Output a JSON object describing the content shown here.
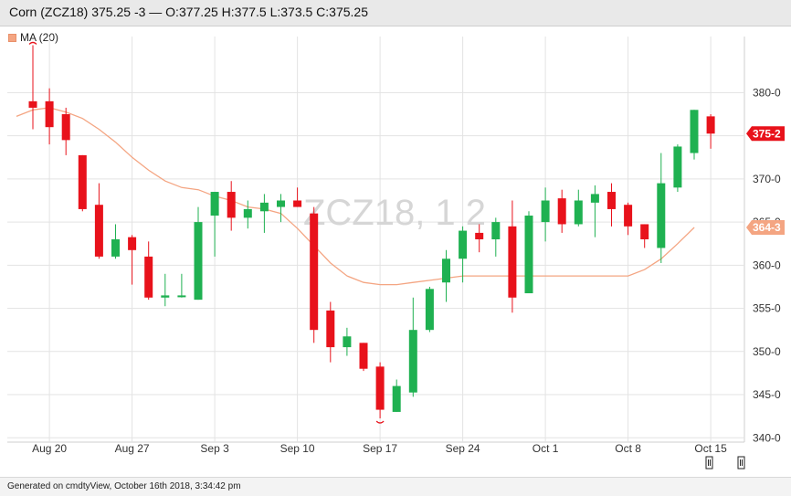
{
  "header": {
    "title": "Corn (ZCZ18) 375.25 -3 — O:377.25 H:377.5 L:373.5 C:375.25"
  },
  "legend": {
    "ma_label": "MA (20)",
    "ma_color": "#f4a582"
  },
  "footer": {
    "generated": "Generated on cmdtyView, October 16th 2018, 3:34:42 pm"
  },
  "colors": {
    "up": "#1fb151",
    "down": "#e8121b",
    "grid": "#e3e3e3",
    "watermark": "#d6d6d6"
  },
  "chart_data": {
    "type": "candlestick",
    "symbol_watermark": "ZCZ18, 1 2",
    "x_ticks": [
      {
        "label": "Aug 20",
        "index": 1
      },
      {
        "label": "Aug 27",
        "index": 6
      },
      {
        "label": "Sep 3",
        "index": 11
      },
      {
        "label": "Sep 10",
        "index": 16
      },
      {
        "label": "Sep 17",
        "index": 21
      },
      {
        "label": "Sep 24",
        "index": 26
      },
      {
        "label": "Oct 1",
        "index": 31
      },
      {
        "label": "Oct 8",
        "index": 36
      },
      {
        "label": "Oct 15",
        "index": 41
      }
    ],
    "y_ticks": [
      "340-0",
      "345-0",
      "350-0",
      "355-0",
      "360-0",
      "365-0",
      "370-0",
      "375-0",
      "380-0"
    ],
    "ylim": [
      339.5,
      386.5
    ],
    "price_labels": [
      {
        "text": "375-2",
        "value": 375.25,
        "color": "#e8121b"
      },
      {
        "text": "364-3",
        "value": 364.375,
        "color": "#f4a582"
      }
    ],
    "candles": [
      {
        "date": "Aug 17",
        "o": 379.0,
        "h": 385.5,
        "l": 375.75,
        "c": 378.25
      },
      {
        "date": "Aug 20",
        "o": 379.0,
        "h": 380.5,
        "l": 374.0,
        "c": 376.0
      },
      {
        "date": "Aug 21",
        "o": 377.5,
        "h": 378.25,
        "l": 372.75,
        "c": 374.5
      },
      {
        "date": "Aug 22",
        "o": 372.75,
        "h": 372.75,
        "l": 366.25,
        "c": 366.5
      },
      {
        "date": "Aug 23",
        "o": 367.0,
        "h": 369.5,
        "l": 360.75,
        "c": 361.0
      },
      {
        "date": "Aug 24",
        "o": 361.0,
        "h": 364.75,
        "l": 360.75,
        "c": 363.0
      },
      {
        "date": "Aug 27",
        "o": 363.25,
        "h": 363.5,
        "l": 357.75,
        "c": 361.75
      },
      {
        "date": "Aug 28",
        "o": 361.0,
        "h": 362.75,
        "l": 356.0,
        "c": 356.25
      },
      {
        "date": "Aug 29",
        "o": 356.25,
        "h": 359.0,
        "l": 355.25,
        "c": 356.5
      },
      {
        "date": "Aug 30",
        "o": 356.5,
        "h": 359.0,
        "l": 356.25,
        "c": 356.5
      },
      {
        "date": "Aug 31",
        "o": 356.0,
        "h": 366.75,
        "l": 356.0,
        "c": 365.0
      },
      {
        "date": "Sep 4",
        "o": 365.75,
        "h": 368.5,
        "l": 361.0,
        "c": 368.5
      },
      {
        "date": "Sep 5",
        "o": 368.5,
        "h": 369.75,
        "l": 364.0,
        "c": 365.5
      },
      {
        "date": "Sep 6",
        "o": 365.5,
        "h": 367.5,
        "l": 364.25,
        "c": 366.5
      },
      {
        "date": "Sep 7",
        "o": 366.25,
        "h": 368.25,
        "l": 363.75,
        "c": 367.25
      },
      {
        "date": "Sep 10",
        "o": 366.75,
        "h": 368.25,
        "l": 365.0,
        "c": 367.5
      },
      {
        "date": "Sep 11",
        "o": 367.5,
        "h": 369.0,
        "l": 366.75,
        "c": 366.75
      },
      {
        "date": "Sep 12",
        "o": 366.0,
        "h": 366.75,
        "l": 351.0,
        "c": 352.5
      },
      {
        "date": "Sep 13",
        "o": 354.75,
        "h": 355.75,
        "l": 348.75,
        "c": 350.5
      },
      {
        "date": "Sep 14",
        "o": 350.5,
        "h": 352.75,
        "l": 349.5,
        "c": 351.75
      },
      {
        "date": "Sep 17",
        "o": 351.0,
        "h": 351.0,
        "l": 347.75,
        "c": 348.0
      },
      {
        "date": "Sep 18",
        "o": 348.25,
        "h": 348.75,
        "l": 342.25,
        "c": 343.25
      },
      {
        "date": "Sep 19",
        "o": 343.0,
        "h": 346.75,
        "l": 343.0,
        "c": 346.0
      },
      {
        "date": "Sep 20",
        "o": 345.25,
        "h": 356.25,
        "l": 344.75,
        "c": 352.5
      },
      {
        "date": "Sep 21",
        "o": 352.5,
        "h": 357.5,
        "l": 352.25,
        "c": 357.25
      },
      {
        "date": "Sep 24",
        "o": 358.0,
        "h": 361.75,
        "l": 355.75,
        "c": 360.75
      },
      {
        "date": "Sep 25",
        "o": 360.75,
        "h": 364.5,
        "l": 358.0,
        "c": 364.0
      },
      {
        "date": "Sep 26",
        "o": 363.75,
        "h": 364.75,
        "l": 361.5,
        "c": 363.0
      },
      {
        "date": "Sep 27",
        "o": 363.0,
        "h": 365.5,
        "l": 361.0,
        "c": 365.0
      },
      {
        "date": "Sep 28",
        "o": 364.5,
        "h": 367.5,
        "l": 354.5,
        "c": 356.25
      },
      {
        "date": "Oct 1",
        "o": 356.75,
        "h": 366.25,
        "l": 356.75,
        "c": 365.75
      },
      {
        "date": "Oct 2",
        "o": 365.0,
        "h": 369.0,
        "l": 362.75,
        "c": 367.5
      },
      {
        "date": "Oct 3",
        "o": 367.75,
        "h": 368.75,
        "l": 363.75,
        "c": 364.75
      },
      {
        "date": "Oct 4",
        "o": 364.75,
        "h": 368.75,
        "l": 364.5,
        "c": 367.5
      },
      {
        "date": "Oct 5",
        "o": 367.25,
        "h": 369.25,
        "l": 363.25,
        "c": 368.25
      },
      {
        "date": "Oct 8",
        "o": 368.5,
        "h": 369.5,
        "l": 364.5,
        "c": 366.5
      },
      {
        "date": "Oct 9",
        "o": 367.0,
        "h": 367.25,
        "l": 363.5,
        "c": 364.5
      },
      {
        "date": "Oct 10",
        "o": 364.75,
        "h": 364.75,
        "l": 362.0,
        "c": 363.0
      },
      {
        "date": "Oct 11",
        "o": 362.0,
        "h": 373.0,
        "l": 360.25,
        "c": 369.5
      },
      {
        "date": "Oct 12",
        "o": 369.0,
        "h": 374.0,
        "l": 368.5,
        "c": 373.75
      },
      {
        "date": "Oct 15",
        "o": 373.0,
        "h": 378.0,
        "l": 372.25,
        "c": 378.0
      },
      {
        "date": "Oct 16",
        "o": 377.25,
        "h": 377.5,
        "l": 373.5,
        "c": 375.25
      }
    ],
    "ma": {
      "name": "MA (20)",
      "values": [
        377.25,
        378.0,
        378.25,
        377.75,
        377.0,
        375.75,
        374.25,
        372.5,
        371.0,
        369.75,
        369.0,
        368.75,
        368.0,
        367.5,
        366.75,
        366.5,
        366.0,
        364.25,
        362.25,
        360.25,
        358.75,
        358.0,
        357.75,
        357.75,
        358.0,
        358.25,
        358.5,
        358.75,
        358.75,
        358.75,
        358.75,
        358.75,
        358.75,
        358.75,
        358.75,
        358.75,
        358.75,
        358.75,
        359.5,
        360.75,
        362.5,
        364.375
      ]
    }
  }
}
